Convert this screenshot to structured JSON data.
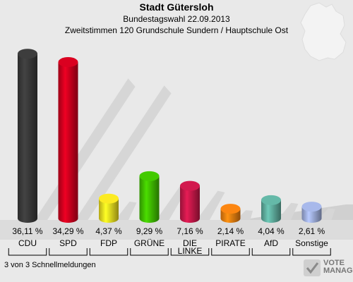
{
  "chart_data": {
    "type": "bar",
    "title": "Stadt Gütersloh",
    "subtitle": "Bundestagswahl 22.09.2013",
    "subtitle2": "Zweitstimmen 120 Grundschule Sundern / Hauptschule Ost",
    "categories": [
      "CDU",
      "SPD",
      "FDP",
      "GRÜNE",
      "DIE LINKE",
      "PIRATE",
      "AfD",
      "Sonstige"
    ],
    "values": [
      36.11,
      34.29,
      4.37,
      9.29,
      7.16,
      2.14,
      4.04,
      2.61
    ],
    "value_labels": [
      "36,11 %",
      "34,29 %",
      "4,37 %",
      "9,29 %",
      "7,16 %",
      "2,14 %",
      "4,04 %",
      "2,61 %"
    ],
    "colors": [
      "#3a3a3a",
      "#d0001e",
      "#f0e020",
      "#40c000",
      "#c8184a",
      "#f08010",
      "#60b0a0",
      "#a0b0e0"
    ],
    "ylim": [
      0,
      38
    ]
  },
  "footnote": "3 von 3 Schnellmeldungen",
  "watermark": {
    "line1": "VOTE",
    "line2": "MANAGER"
  }
}
